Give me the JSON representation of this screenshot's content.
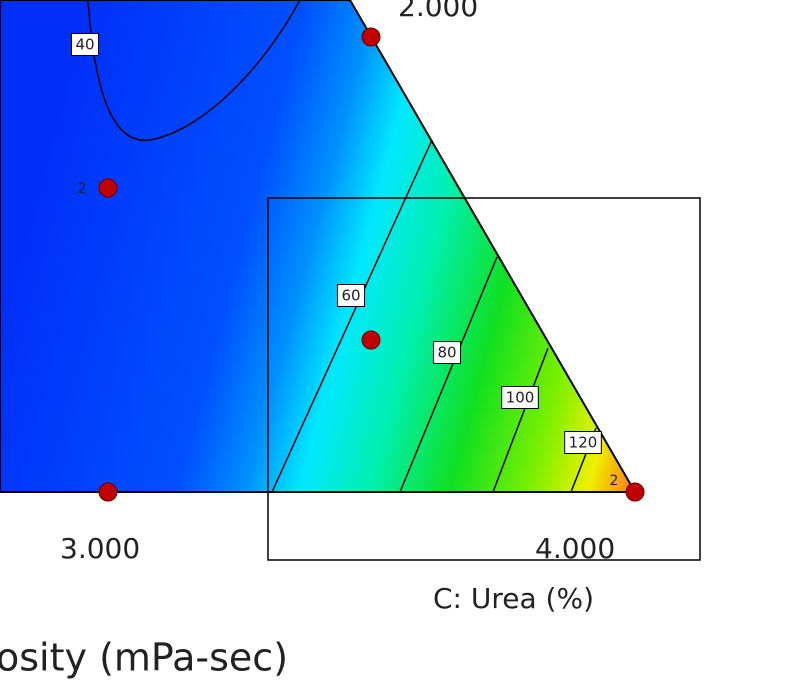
{
  "chart_data": {
    "type": "ternary-contour",
    "title": "osity (mPa-sec)",
    "axis_label": "C: Urea (%)",
    "ticks": [
      {
        "value": 2,
        "label": "2.000"
      },
      {
        "value": 3,
        "label": "3.000"
      },
      {
        "value": 4,
        "label": "4.000"
      }
    ],
    "contour_levels": [
      40,
      60,
      80,
      100,
      120
    ],
    "replicate_labels": [
      "2",
      "2"
    ]
  }
}
